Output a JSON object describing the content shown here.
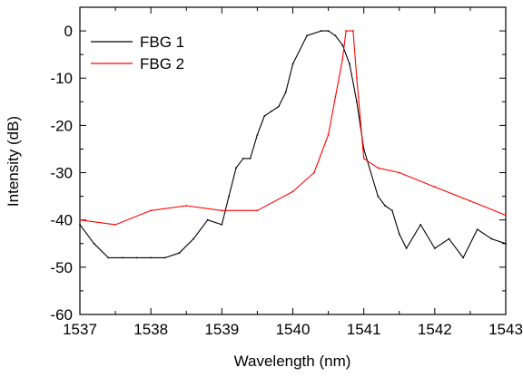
{
  "chart_data": {
    "type": "line",
    "title": "",
    "xlabel": "Wavelength (nm)",
    "ylabel": "Intensity (dB)",
    "xlim": [
      1537,
      1543
    ],
    "ylim": [
      -60,
      5
    ],
    "x_ticks": [
      1537,
      1538,
      1539,
      1540,
      1541,
      1542,
      1543
    ],
    "y_ticks": [
      0,
      -10,
      -20,
      -30,
      -40,
      -50,
      -60
    ],
    "grid": false,
    "legend_position": "top-left",
    "series": [
      {
        "name": "FBG 1",
        "color": "#000000",
        "x": [
          1537.0,
          1537.2,
          1537.4,
          1537.6,
          1537.8,
          1538.0,
          1538.2,
          1538.4,
          1538.6,
          1538.8,
          1539.0,
          1539.1,
          1539.2,
          1539.3,
          1539.4,
          1539.5,
          1539.6,
          1539.7,
          1539.8,
          1539.9,
          1540.0,
          1540.2,
          1540.4,
          1540.5,
          1540.6,
          1540.7,
          1540.8,
          1540.9,
          1541.0,
          1541.2,
          1541.3,
          1541.4,
          1541.5,
          1541.6,
          1541.8,
          1542.0,
          1542.2,
          1542.4,
          1542.6,
          1542.8,
          1543.0
        ],
        "values": [
          -41,
          -45,
          -48,
          -48,
          -48,
          -48,
          -48,
          -47,
          -44,
          -40,
          -41,
          -35,
          -29,
          -27,
          -27,
          -22,
          -18,
          -17,
          -16,
          -13,
          -7,
          -1,
          0,
          0,
          -1,
          -3,
          -7,
          -15,
          -25,
          -35,
          -37,
          -38,
          -43,
          -46,
          -41,
          -46,
          -44,
          -48,
          -42,
          -44,
          -45
        ]
      },
      {
        "name": "FBG 2",
        "color": "#ff0000",
        "x": [
          1537.0,
          1537.5,
          1538.0,
          1538.5,
          1539.0,
          1539.5,
          1540.0,
          1540.3,
          1540.5,
          1540.6,
          1540.7,
          1540.75,
          1540.85,
          1540.9,
          1541.0,
          1541.2,
          1541.5,
          1542.0,
          1542.5,
          1543.0
        ],
        "values": [
          -40,
          -41,
          -38,
          -37,
          -38,
          -38,
          -34,
          -30,
          -22,
          -14,
          -6,
          0,
          0,
          -10,
          -27,
          -29,
          -30,
          -33,
          -36,
          -39
        ]
      }
    ]
  }
}
